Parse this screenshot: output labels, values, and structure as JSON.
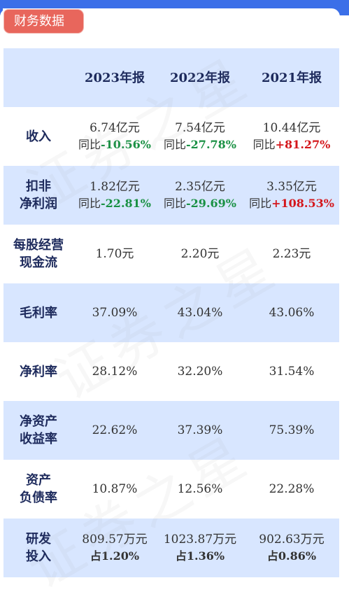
{
  "tag": {
    "label": "财务数据"
  },
  "header": {
    "years": [
      "2023年报",
      "2022年报",
      "2021年报"
    ]
  },
  "watermark": "证券之星",
  "rows": [
    {
      "label_lines": [
        "收入"
      ],
      "cells": [
        {
          "main": "6.74亿元",
          "prefix": "同比",
          "change": "-10.56%",
          "dir": "neg"
        },
        {
          "main": "7.54亿元",
          "prefix": "同比",
          "change": "-27.78%",
          "dir": "neg"
        },
        {
          "main": "10.44亿元",
          "prefix": "同比",
          "change": "+81.27%",
          "dir": "pos"
        }
      ]
    },
    {
      "label_lines": [
        "扣非",
        "净利润"
      ],
      "cells": [
        {
          "main": "1.82亿元",
          "prefix": "同比",
          "change": "-22.81%",
          "dir": "neg"
        },
        {
          "main": "2.35亿元",
          "prefix": "同比",
          "change": "-29.69%",
          "dir": "neg"
        },
        {
          "main": "3.35亿元",
          "prefix": "同比",
          "change": "+108.53%",
          "dir": "pos"
        }
      ]
    },
    {
      "label_lines": [
        "每股经营",
        "现金流"
      ],
      "cells": [
        {
          "main": "1.70元"
        },
        {
          "main": "2.20元"
        },
        {
          "main": "2.23元"
        }
      ]
    },
    {
      "label_lines": [
        "毛利率"
      ],
      "cells": [
        {
          "main": "37.09%"
        },
        {
          "main": "43.04%"
        },
        {
          "main": "43.06%"
        }
      ]
    },
    {
      "label_lines": [
        "净利率"
      ],
      "cells": [
        {
          "main": "28.12%"
        },
        {
          "main": "32.20%"
        },
        {
          "main": "31.54%"
        }
      ]
    },
    {
      "label_lines": [
        "净资产",
        "收益率"
      ],
      "cells": [
        {
          "main": "22.62%"
        },
        {
          "main": "37.39%"
        },
        {
          "main": "75.39%"
        }
      ]
    },
    {
      "label_lines": [
        "资产",
        "负债率"
      ],
      "cells": [
        {
          "main": "10.87%"
        },
        {
          "main": "12.56%"
        },
        {
          "main": "22.28%"
        }
      ]
    },
    {
      "label_lines": [
        "研发",
        "投入"
      ],
      "cells": [
        {
          "main": "809.57万元",
          "prefix": "占",
          "change": "1.20%",
          "dir": "bold"
        },
        {
          "main": "1023.87万元",
          "prefix": "占",
          "change": "1.36%",
          "dir": "bold"
        },
        {
          "main": "902.63万元",
          "prefix": "占",
          "change": "0.86%",
          "dir": "bold"
        }
      ]
    }
  ]
}
